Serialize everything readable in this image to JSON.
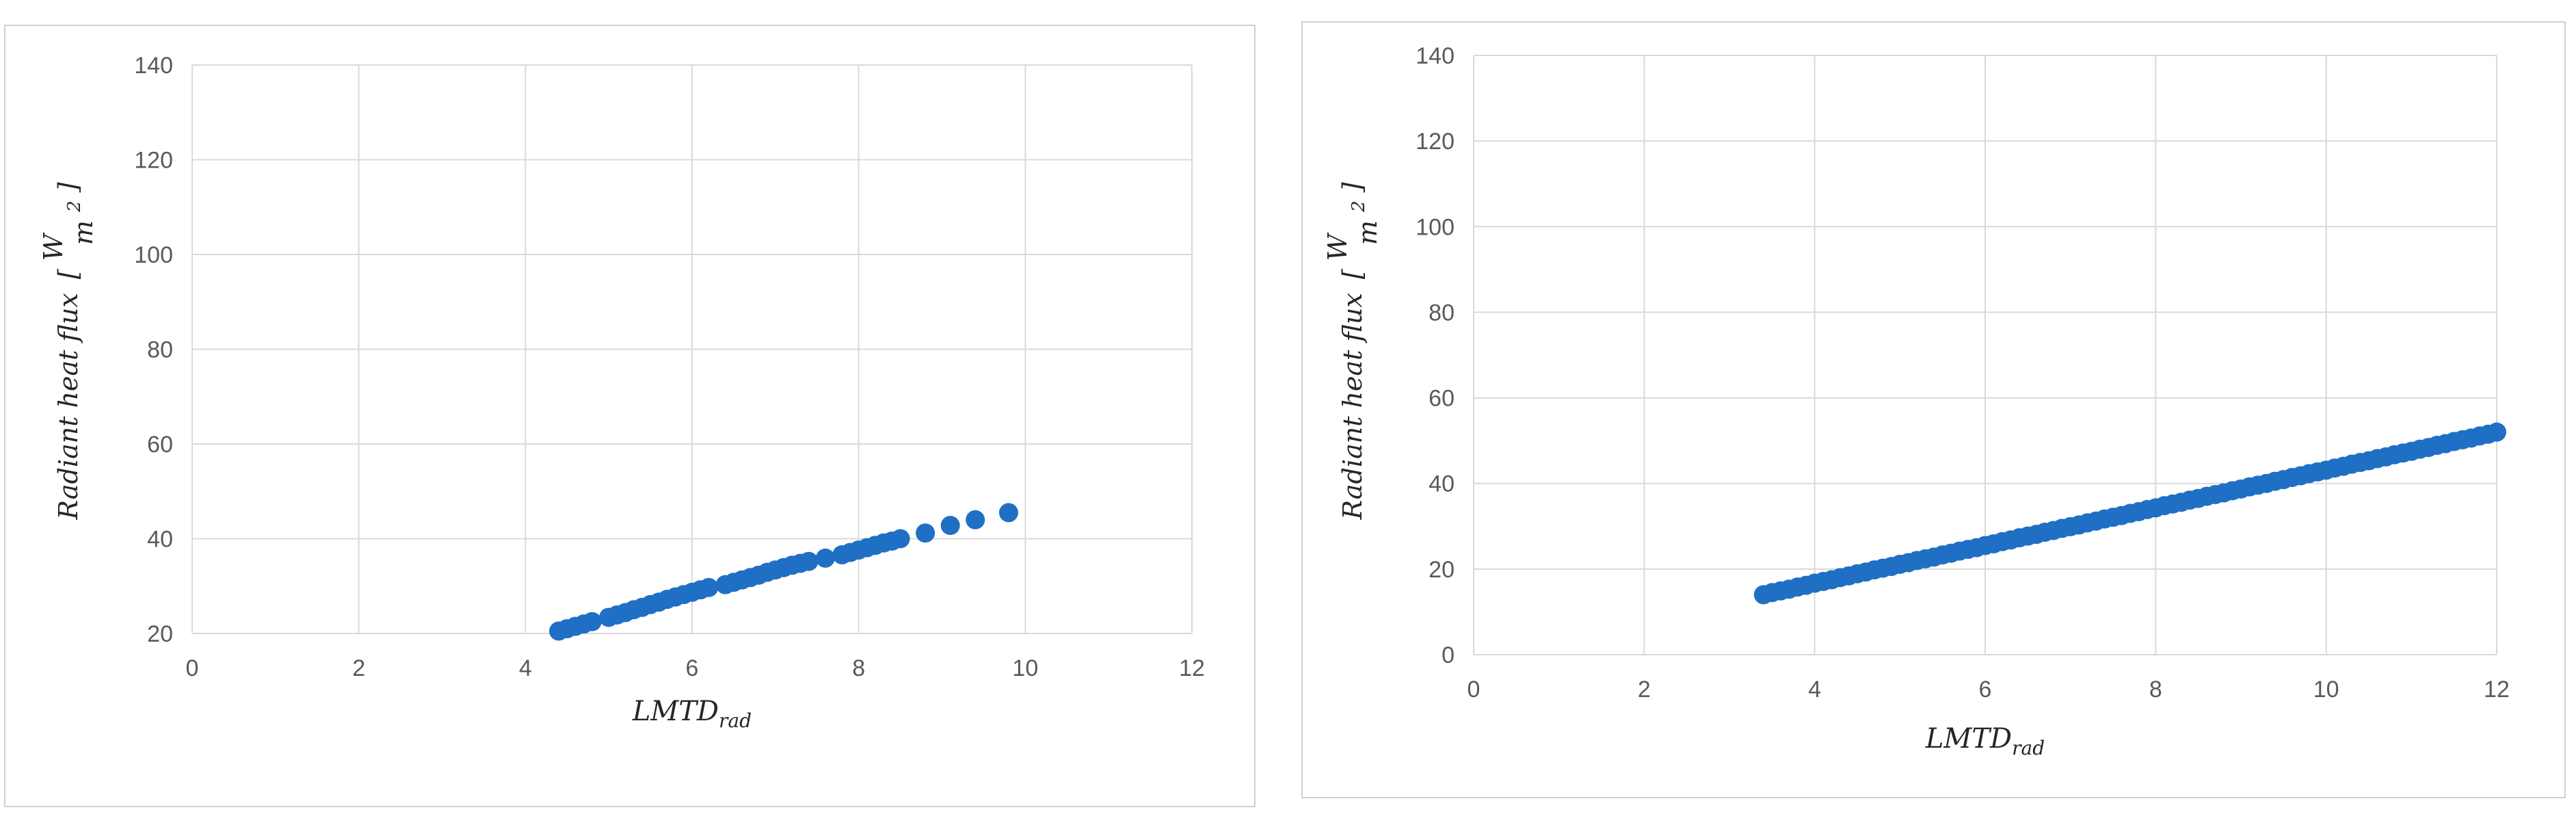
{
  "chart_data": [
    {
      "type": "scatter",
      "xlabel": "LMTD",
      "xlabel_sub": "rad",
      "ylabel": "Radiant heat flux",
      "ylabel_unit_num": "W",
      "ylabel_unit_den": "m",
      "ylabel_unit_exp": "2",
      "xlim": [
        0,
        12
      ],
      "ylim": [
        20,
        140
      ],
      "xticks": [
        "0",
        "2",
        "4",
        "6",
        "8",
        "10",
        "12"
      ],
      "yticks": [
        "20",
        "40",
        "60",
        "80",
        "100",
        "120",
        "140"
      ],
      "grid": true,
      "color": "#1f6fc5",
      "series": [
        {
          "x": [
            4.4,
            4.5,
            4.6,
            4.7,
            4.8,
            5.0,
            5.1,
            5.2,
            5.3,
            5.4,
            5.5,
            5.6,
            5.7,
            5.8,
            5.9,
            6.0,
            6.1,
            6.2,
            6.4,
            6.5,
            6.6,
            6.7,
            6.8,
            6.9,
            7.0,
            7.1,
            7.2,
            7.3,
            7.4,
            7.6,
            7.8,
            7.9,
            8.0,
            8.1,
            8.2,
            8.3,
            8.4,
            8.5,
            8.8,
            9.1,
            9.4,
            9.8
          ],
          "y": [
            20.5,
            21.0,
            21.5,
            22.0,
            22.5,
            23.4,
            23.9,
            24.4,
            25.0,
            25.5,
            26.1,
            26.6,
            27.2,
            27.7,
            28.2,
            28.7,
            29.2,
            29.7,
            30.3,
            30.8,
            31.3,
            31.8,
            32.3,
            32.9,
            33.4,
            33.9,
            34.4,
            34.8,
            35.2,
            35.9,
            36.6,
            37.1,
            37.6,
            38.1,
            38.6,
            39.1,
            39.5,
            40.0,
            41.2,
            42.8,
            44.0,
            45.5
          ]
        }
      ]
    },
    {
      "type": "scatter",
      "xlabel": "LMTD",
      "xlabel_sub": "rad",
      "ylabel": "Radiant heat flux",
      "ylabel_unit_num": "W",
      "ylabel_unit_den": "m",
      "ylabel_unit_exp": "2",
      "xlim": [
        0,
        12
      ],
      "ylim": [
        0,
        140
      ],
      "xticks": [
        "0",
        "2",
        "4",
        "6",
        "8",
        "10",
        "12"
      ],
      "yticks": [
        "0",
        "20",
        "40",
        "60",
        "80",
        "100",
        "120",
        "140"
      ],
      "grid": true,
      "color": "#1f6fc5",
      "series": [
        {
          "x": [
            3.4,
            3.5,
            3.6,
            3.7,
            3.8,
            3.9,
            4.0,
            4.1,
            4.2,
            4.3,
            4.4,
            4.5,
            4.6,
            4.7,
            4.8,
            4.9,
            5.0,
            5.1,
            5.2,
            5.3,
            5.4,
            5.5,
            5.6,
            5.7,
            5.8,
            5.9,
            6.0,
            6.1,
            6.2,
            6.3,
            6.4,
            6.5,
            6.6,
            6.7,
            6.8,
            6.9,
            7.0,
            7.1,
            7.2,
            7.3,
            7.4,
            7.5,
            7.6,
            7.7,
            7.8,
            7.9,
            8.0,
            8.1,
            8.2,
            8.3,
            8.4,
            8.5,
            8.6,
            8.7,
            8.8,
            8.9,
            9.0,
            9.1,
            9.2,
            9.3,
            9.4,
            9.5,
            9.6,
            9.7,
            9.8,
            9.9,
            10.0,
            10.1,
            10.2,
            10.3,
            10.4,
            10.5,
            10.6,
            10.7,
            10.8,
            10.9,
            11.0,
            11.1,
            11.2,
            11.3,
            11.4,
            11.5,
            11.6,
            11.7,
            11.8,
            11.9,
            12.0
          ],
          "y": [
            14.0,
            14.5,
            14.9,
            15.3,
            15.8,
            16.2,
            16.7,
            17.1,
            17.5,
            18.0,
            18.4,
            18.9,
            19.3,
            19.8,
            20.2,
            20.6,
            21.1,
            21.5,
            22.0,
            22.4,
            22.8,
            23.3,
            23.7,
            24.2,
            24.6,
            25.0,
            25.5,
            25.9,
            26.4,
            26.8,
            27.3,
            27.7,
            28.1,
            28.6,
            29.0,
            29.5,
            29.9,
            30.3,
            30.8,
            31.2,
            31.7,
            32.1,
            32.5,
            33.0,
            33.4,
            33.9,
            34.3,
            34.8,
            35.2,
            35.6,
            36.1,
            36.5,
            37.0,
            37.4,
            37.8,
            38.3,
            38.7,
            39.2,
            39.6,
            40.0,
            40.5,
            40.9,
            41.4,
            41.8,
            42.3,
            42.7,
            43.1,
            43.6,
            44.0,
            44.5,
            44.9,
            45.3,
            45.8,
            46.2,
            46.7,
            47.1,
            47.5,
            48.0,
            48.4,
            48.9,
            49.3,
            49.8,
            50.2,
            50.6,
            51.1,
            51.5,
            52.0
          ]
        }
      ]
    }
  ]
}
